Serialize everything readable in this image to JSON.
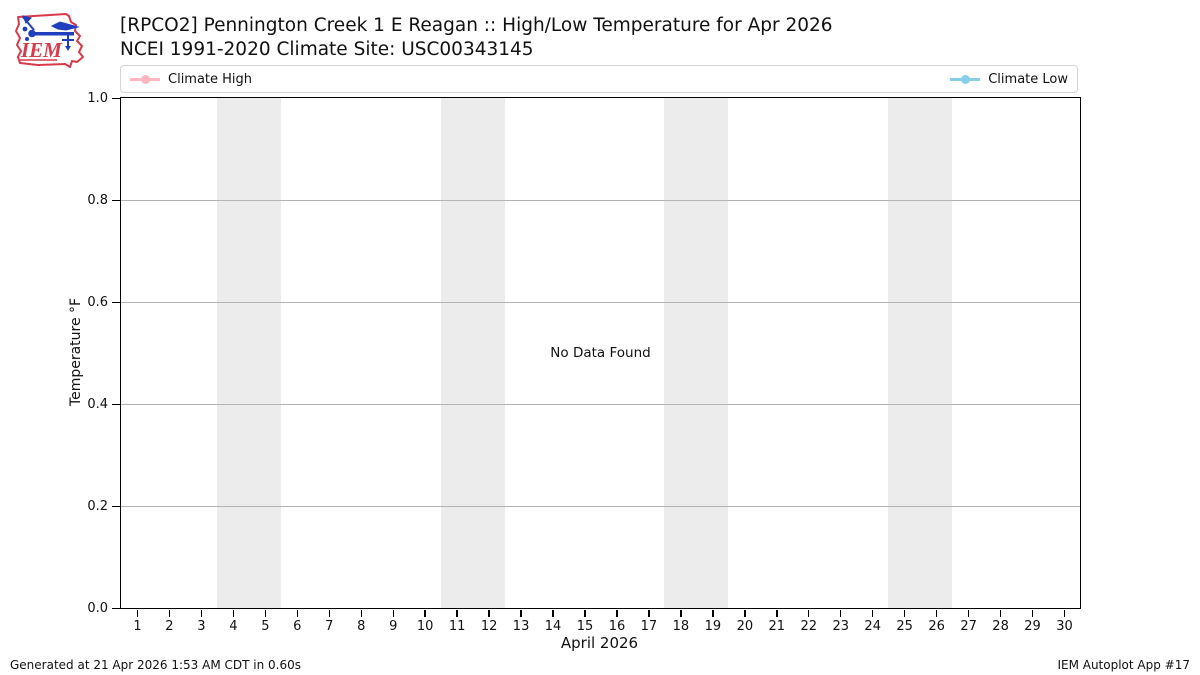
{
  "header": {
    "title_line1": "[RPCO2] Pennington Creek 1 E Reagan :: High/Low Temperature for Apr 2026",
    "title_line2": "NCEI 1991-2020 Climate Site: USC00343145",
    "logo_text": "IEM"
  },
  "legend": {
    "items": [
      {
        "label": "Climate High",
        "color": "#ffb6c1"
      },
      {
        "label": "Climate Low",
        "color": "#87ceeb"
      }
    ]
  },
  "chart_data": {
    "type": "line",
    "title": "[RPCO2] Pennington Creek 1 E Reagan :: High/Low Temperature for Apr 2026",
    "subtitle": "NCEI 1991-2020 Climate Site: USC00343145",
    "xlabel": "April 2026",
    "ylabel": "Temperature °F",
    "xlim": [
      0.5,
      30.5
    ],
    "ylim": [
      0.0,
      1.0
    ],
    "x_ticks": [
      1,
      2,
      3,
      4,
      5,
      6,
      7,
      8,
      9,
      10,
      11,
      12,
      13,
      14,
      15,
      16,
      17,
      18,
      19,
      20,
      21,
      22,
      23,
      24,
      25,
      26,
      27,
      28,
      29,
      30
    ],
    "y_ticks": [
      0.0,
      0.2,
      0.4,
      0.6,
      0.8,
      1.0
    ],
    "grid": true,
    "legend_position": "top, expanded full plot width",
    "weekend_bands": [
      [
        3.5,
        5.5
      ],
      [
        10.5,
        12.5
      ],
      [
        17.5,
        19.5
      ],
      [
        24.5,
        26.5
      ]
    ],
    "band_color": "#ececec",
    "grid_color": "#b3b3b3",
    "series": [
      {
        "name": "Climate High",
        "color": "#ffb6c1",
        "values": []
      },
      {
        "name": "Climate Low",
        "color": "#87ceeb",
        "values": []
      }
    ],
    "no_data_text": "No Data Found"
  },
  "footer": {
    "generated": "Generated at 21 Apr 2026 1:53 AM CDT in 0.60s",
    "app": "IEM Autoplot App #17"
  }
}
